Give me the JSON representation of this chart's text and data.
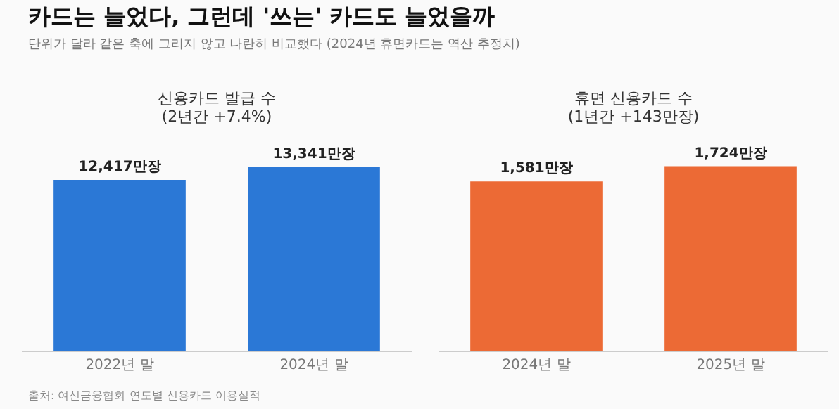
{
  "chart_data": [
    {
      "type": "bar",
      "title": "카드는 늘었다, 그런데 '쓰는' 카드도 늘었을까",
      "subtitle": "단위가 달라 같은 축에 그리지 않고 나란히 비교했다 (2024년 휴면카드는 역산 추정치)",
      "xlabel": "신용카드 발급 수",
      "ylabel": "(2년간 +7.4%)",
      "categories": [
        "2022년 말",
        "2024년 말"
      ],
      "values": [
        12417,
        13341
      ],
      "value_labels": [
        "12,417만장",
        "13,341만장"
      ],
      "color": "#2b78d6",
      "grid": false,
      "legend": false
    },
    {
      "type": "bar",
      "xlabel": "휴면 신용카드 수",
      "ylabel": "(1년간 +143만장)",
      "categories": [
        "2024년 말",
        "2025년 말"
      ],
      "values": [
        1581,
        1724
      ],
      "value_labels": [
        "1,581만장",
        "1,724만장"
      ],
      "color": "#ec6a35",
      "grid": false,
      "legend": false,
      "annotations": [
        "출처: 여신금융협회 연도별 신용카드 이용실적"
      ]
    }
  ]
}
